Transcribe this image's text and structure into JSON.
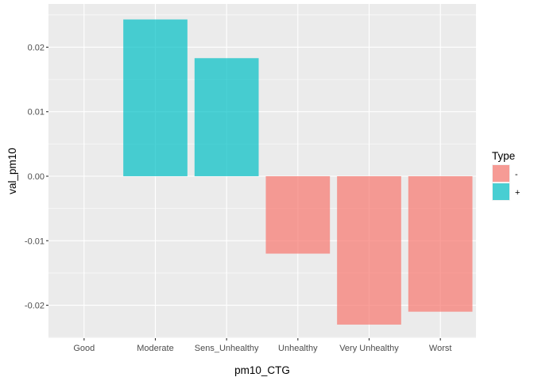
{
  "chart_data": {
    "type": "bar",
    "xlabel": "pm10_CTG",
    "ylabel": "val_pm10",
    "categories": [
      "Good",
      "Moderate",
      "Sens_Unhealthy",
      "Unhealthy",
      "Very Unhealthy",
      "Worst"
    ],
    "values": [
      0,
      0.0243,
      0.0183,
      -0.012,
      -0.023,
      -0.021
    ],
    "types": [
      "+",
      "+",
      "+",
      "-",
      "-",
      "-"
    ],
    "ylim": [
      -0.0251,
      0.0267
    ],
    "yticks": [
      -0.02,
      -0.01,
      0.0,
      0.01,
      0.02
    ],
    "ytick_labels": [
      "-0.02",
      "-0.01",
      "0.00",
      "0.01",
      "0.02"
    ],
    "grid": true,
    "legend": {
      "title": "Type",
      "position": "right",
      "entries": [
        {
          "label": "-",
          "color": "#F8766D"
        },
        {
          "label": "+",
          "color": "#00BFC4"
        }
      ]
    },
    "colors": {
      "panel": "#EBEBEB",
      "grid_major": "#FFFFFF",
      "negative": "#F8766D",
      "positive": "#00BFC4"
    }
  }
}
